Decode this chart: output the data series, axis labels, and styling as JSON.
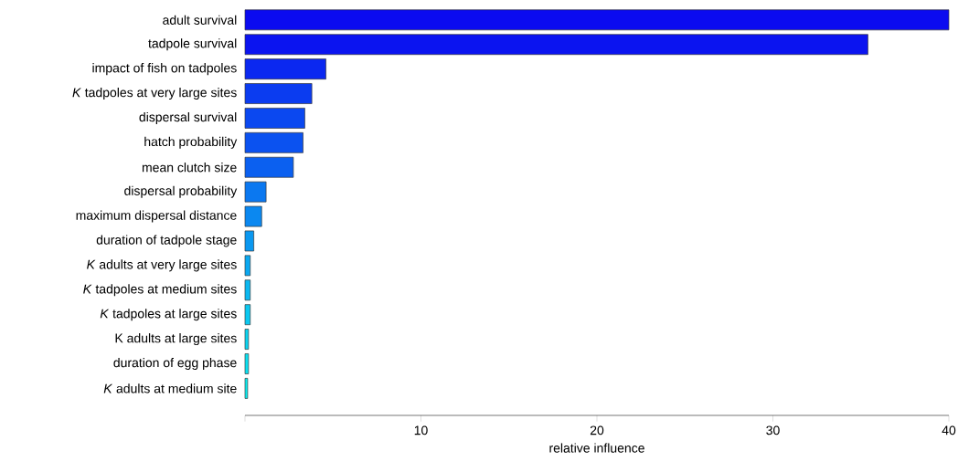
{
  "chart_data": {
    "type": "bar",
    "orientation": "horizontal",
    "xlabel": "relative influence",
    "categories": [
      "adult survival",
      "tadpole survival",
      "impact of fish on tadpoles",
      "*K* tadpoles at very large sites",
      "dispersal survival",
      "hatch probability",
      "mean clutch size",
      "dispersal probability",
      "maximum dispersal distance",
      "duration of tadpole stage",
      "*K* adults at very large sites",
      "*K* tadpoles at medium sites",
      "*K* tadpoles at large sites",
      "K adults at large sites",
      "duration of egg phase",
      "*K* adults at medium site"
    ],
    "values": [
      40,
      35.4,
      4.6,
      3.8,
      3.4,
      3.3,
      2.75,
      1.2,
      0.95,
      0.5,
      0.3,
      0.3,
      0.3,
      0.2,
      0.2,
      0.15
    ],
    "colors": [
      "#0b0bf0",
      "#0b14f0",
      "#0b28f0",
      "#0b3cf0",
      "#0b48f0",
      "#0b52f0",
      "#0b60f0",
      "#0b78f0",
      "#0b88f0",
      "#0b98f0",
      "#0ba8f0",
      "#0bb8f0",
      "#0bc8f0",
      "#0bd4f0",
      "#0be0f0",
      "#0beef0"
    ],
    "xlim": [
      0,
      40
    ],
    "xticks": [
      {
        "value": 0,
        "label": null
      },
      10,
      20,
      30,
      40
    ],
    "grid": false
  }
}
